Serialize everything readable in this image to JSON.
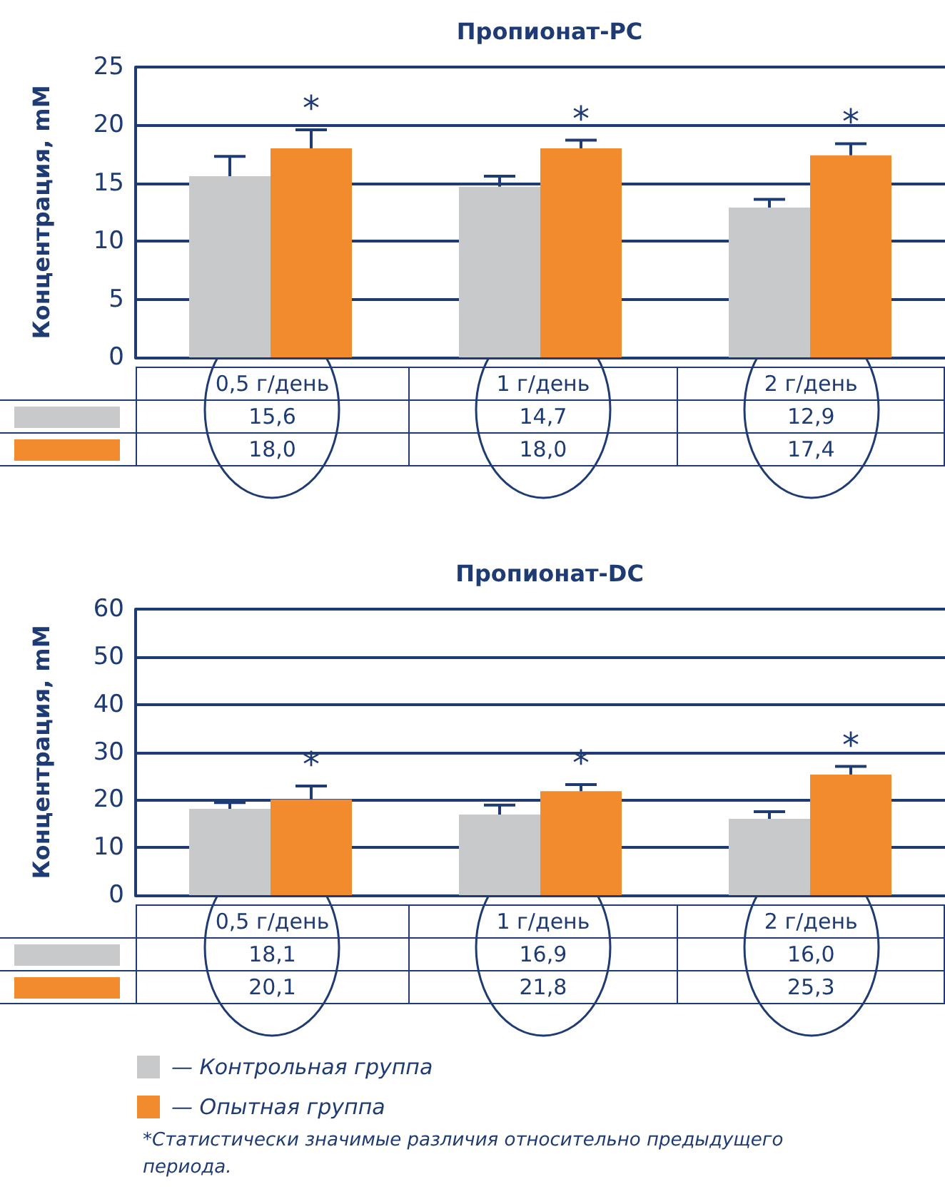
{
  "chart_data": [
    {
      "type": "bar",
      "title": "Пропионат-PC",
      "ylabel": "Концентрация, mM",
      "categories": [
        "0,5 г/день",
        "1 г/день",
        "2 г/день"
      ],
      "series": [
        {
          "color": "#c8c9cb",
          "values": [
            15.6,
            14.7,
            12.9
          ],
          "value_labels": [
            "15,6",
            "14,7",
            "12,9"
          ],
          "errors": [
            [
              15.6,
              17.3
            ],
            [
              14.7,
              15.6
            ],
            [
              12.9,
              13.6
            ]
          ]
        },
        {
          "color": "#f28a2e",
          "values": [
            18.0,
            18.0,
            17.4
          ],
          "value_labels": [
            "18,0",
            "18,0",
            "17,4"
          ],
          "errors": [
            [
              18.0,
              19.6
            ],
            [
              18.0,
              18.7
            ],
            [
              17.4,
              18.4
            ]
          ]
        }
      ],
      "ylim": [
        0,
        25
      ],
      "yticks": [
        0,
        5,
        10,
        15,
        20,
        25
      ],
      "grid": "y",
      "legend": false,
      "annotations": [
        "*",
        "*",
        "*"
      ]
    },
    {
      "type": "bar",
      "title": "Пропионат-DC",
      "ylabel": "Концентрация, mM",
      "categories": [
        "0,5 г/день",
        "1 г/день",
        "2 г/день"
      ],
      "series": [
        {
          "name": "— Контрольная группа",
          "color": "#c8c9cb",
          "values": [
            18.1,
            16.9,
            16.0
          ],
          "value_labels": [
            "18,1",
            "16,9",
            "16,0"
          ],
          "errors": [
            [
              18.1,
              19.4
            ],
            [
              16.9,
              18.9
            ],
            [
              16.0,
              17.5
            ]
          ]
        },
        {
          "name": "— Опытная группа",
          "color": "#f28a2e",
          "values": [
            20.1,
            21.8,
            25.3
          ],
          "value_labels": [
            "20,1",
            "21,8",
            "25,3"
          ],
          "errors": [
            [
              20.1,
              22.9
            ],
            [
              21.8,
              23.2
            ],
            [
              25.3,
              27.0
            ]
          ]
        }
      ],
      "ylim": [
        0,
        60
      ],
      "yticks": [
        0,
        10,
        20,
        30,
        40,
        50,
        60
      ],
      "grid": "y",
      "legend": "bottom",
      "annotations": [
        "*",
        "*",
        "*",
        "*Статистически значимые различия относительно предыдущего периода."
      ]
    }
  ]
}
